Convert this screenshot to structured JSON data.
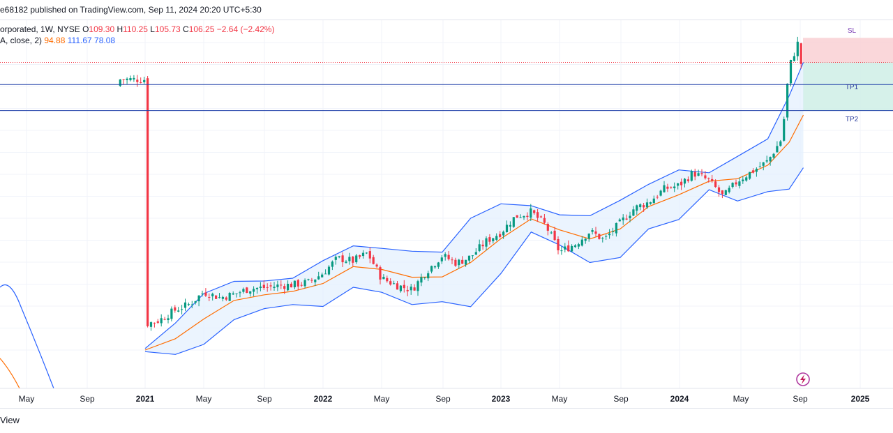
{
  "header": {
    "publish_text": "e68182 published on TradingView.com, Sep 11, 2024 20:20 UTC+5:30"
  },
  "legend": {
    "symbol": "orporated, 1W, NYSE",
    "open_label": "O",
    "open": "109.30",
    "high_label": "H",
    "high": "110.25",
    "low_label": "L",
    "low": "105.73",
    "close_label": "C",
    "close": "106.25",
    "change": "−2.64 (−2.42%)",
    "indicator": "A, close, 2)",
    "basis": "94.88",
    "upper": "111.67",
    "lower": "78.08"
  },
  "footer": {
    "text": "View"
  },
  "colors": {
    "up": "#089981",
    "down": "#f23645",
    "band": "#2962ff",
    "basis": "#ff6d00",
    "band_fill": "#e3f0fd",
    "sl_fill": "#f9d0d3",
    "tp_fill": "#cfeee6"
  },
  "chart_data": {
    "type": "candlestick",
    "interval": "1W",
    "exchange": "NYSE",
    "x_ticks": [
      "May",
      "Sep",
      "2021",
      "May",
      "Sep",
      "2022",
      "May",
      "Sep",
      "2023",
      "May",
      "Sep",
      "2024",
      "May",
      "Sep",
      "2025"
    ],
    "y_range": [
      20,
      122
    ],
    "trade_levels": [
      {
        "label": "SL",
        "price": 119.5
      },
      {
        "label": "",
        "price": 111.67
      },
      {
        "label": "TP1",
        "price": 104.6
      },
      {
        "label": "TP2",
        "price": 96.3
      }
    ],
    "last_close": 106.25,
    "series": {
      "close": [
        [
          2021.0,
          28.2
        ],
        [
          2021.08,
          29.5
        ],
        [
          2021.17,
          32.8
        ],
        [
          2021.25,
          34.6
        ],
        [
          2021.33,
          38.5
        ],
        [
          2021.42,
          36.7
        ],
        [
          2021.5,
          37.8
        ],
        [
          2021.58,
          39.5
        ],
        [
          2021.67,
          39.9
        ],
        [
          2021.75,
          40.5
        ],
        [
          2021.83,
          40.8
        ],
        [
          2021.92,
          41.6
        ],
        [
          2022.0,
          44.5
        ],
        [
          2022.08,
          49.2
        ],
        [
          2022.17,
          48.4
        ],
        [
          2022.25,
          50.9
        ],
        [
          2022.33,
          42.8
        ],
        [
          2022.42,
          40.5
        ],
        [
          2022.5,
          39.2
        ],
        [
          2022.58,
          45.0
        ],
        [
          2022.67,
          50.1
        ],
        [
          2022.75,
          47.7
        ],
        [
          2022.83,
          49.7
        ],
        [
          2022.92,
          54.8
        ],
        [
          2023.0,
          57.5
        ],
        [
          2023.08,
          62.5
        ],
        [
          2023.17,
          64.0
        ],
        [
          2023.25,
          59.8
        ],
        [
          2023.33,
          51.3
        ],
        [
          2023.42,
          53.8
        ],
        [
          2023.5,
          57.8
        ],
        [
          2023.58,
          55.1
        ],
        [
          2023.67,
          60.5
        ],
        [
          2023.75,
          65.2
        ],
        [
          2023.83,
          67.1
        ],
        [
          2023.92,
          71.4
        ],
        [
          2024.0,
          72.4
        ],
        [
          2024.08,
          76.5
        ],
        [
          2024.17,
          74.0
        ],
        [
          2024.25,
          68.8
        ],
        [
          2024.33,
          73.9
        ],
        [
          2024.42,
          77.2
        ],
        [
          2024.5,
          80.2
        ],
        [
          2024.58,
          87.5
        ],
        [
          2024.62,
          110.1
        ],
        [
          2024.67,
          118.0
        ],
        [
          2024.7,
          106.25
        ]
      ],
      "basis": [
        [
          2021.0,
          20.0
        ],
        [
          2021.17,
          23.6
        ],
        [
          2021.33,
          29.9
        ],
        [
          2021.5,
          35.8
        ],
        [
          2021.67,
          37.6
        ],
        [
          2021.83,
          38.7
        ],
        [
          2022.0,
          41.2
        ],
        [
          2022.17,
          46.6
        ],
        [
          2022.33,
          45.7
        ],
        [
          2022.5,
          43.2
        ],
        [
          2022.67,
          43.3
        ],
        [
          2022.83,
          47.9
        ],
        [
          2023.0,
          55.5
        ],
        [
          2023.17,
          61.8
        ],
        [
          2023.33,
          58.3
        ],
        [
          2023.5,
          55.4
        ],
        [
          2023.67,
          58.6
        ],
        [
          2023.83,
          65.7
        ],
        [
          2024.0,
          69.5
        ],
        [
          2024.17,
          73.8
        ],
        [
          2024.33,
          74.6
        ],
        [
          2024.5,
          78.9
        ],
        [
          2024.62,
          86.2
        ],
        [
          2024.7,
          94.88
        ]
      ],
      "upper": [
        [
          2021.0,
          20.5
        ],
        [
          2021.17,
          28.6
        ],
        [
          2021.33,
          38.0
        ],
        [
          2021.5,
          41.9
        ],
        [
          2021.67,
          42.0
        ],
        [
          2021.83,
          42.9
        ],
        [
          2022.0,
          48.5
        ],
        [
          2022.17,
          53.2
        ],
        [
          2022.33,
          52.4
        ],
        [
          2022.5,
          51.5
        ],
        [
          2022.67,
          51.2
        ],
        [
          2022.83,
          62.0
        ],
        [
          2023.0,
          66.6
        ],
        [
          2023.17,
          66.0
        ],
        [
          2023.33,
          63.1
        ],
        [
          2023.5,
          62.8
        ],
        [
          2023.67,
          67.7
        ],
        [
          2023.83,
          72.8
        ],
        [
          2024.0,
          77.4
        ],
        [
          2024.17,
          76.5
        ],
        [
          2024.33,
          81.7
        ],
        [
          2024.5,
          87.3
        ],
        [
          2024.62,
          101.0
        ],
        [
          2024.7,
          111.67
        ]
      ],
      "lower": [
        [
          2021.0,
          19.5
        ],
        [
          2021.17,
          18.6
        ],
        [
          2021.33,
          21.8
        ],
        [
          2021.5,
          29.7
        ],
        [
          2021.67,
          33.2
        ],
        [
          2021.83,
          34.5
        ],
        [
          2022.0,
          33.9
        ],
        [
          2022.17,
          40.0
        ],
        [
          2022.33,
          38.4
        ],
        [
          2022.5,
          34.5
        ],
        [
          2022.67,
          35.4
        ],
        [
          2022.83,
          33.8
        ],
        [
          2023.0,
          44.4
        ],
        [
          2023.17,
          57.6
        ],
        [
          2023.33,
          53.5
        ],
        [
          2023.5,
          47.9
        ],
        [
          2023.67,
          49.5
        ],
        [
          2023.83,
          58.6
        ],
        [
          2024.0,
          61.6
        ],
        [
          2024.17,
          71.1
        ],
        [
          2024.33,
          67.5
        ],
        [
          2024.5,
          70.5
        ],
        [
          2024.62,
          71.3
        ],
        [
          2024.7,
          78.08
        ]
      ]
    }
  }
}
